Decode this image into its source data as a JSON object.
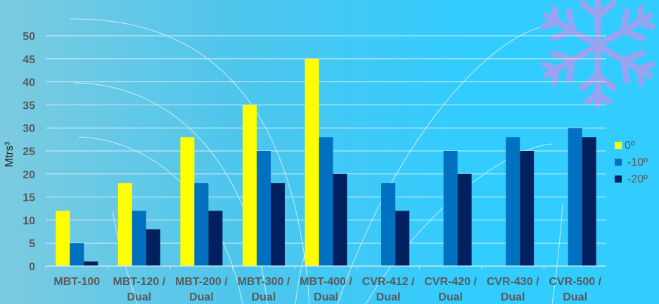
{
  "chart_data": {
    "type": "bar",
    "title": "",
    "xlabel": "",
    "ylabel": "Mtrs³",
    "ylim": [
      0,
      50
    ],
    "yticks": [
      0,
      5,
      10,
      15,
      20,
      25,
      30,
      35,
      40,
      45,
      50
    ],
    "grid": true,
    "legend_position": "right",
    "categories": [
      [
        "MBT-100"
      ],
      [
        "MBT-120 /",
        "Dual"
      ],
      [
        "MBT-200 /",
        "Dual"
      ],
      [
        "MBT-300 /",
        "Dual"
      ],
      [
        "MBT-400 /",
        "Dual"
      ],
      [
        "CVR-412 /",
        "Dual"
      ],
      [
        "CVR-420 /",
        "Dual"
      ],
      [
        "CVR-430 /",
        "Dual"
      ],
      [
        "CVR-500 /",
        "Dual"
      ]
    ],
    "series": [
      {
        "name": "0º",
        "color": "#ffff00",
        "values": [
          12,
          18,
          28,
          35,
          45,
          null,
          null,
          null,
          null
        ]
      },
      {
        "name": "-10º",
        "color": "#0070c0",
        "values": [
          5,
          12,
          18,
          25,
          28,
          18,
          25,
          28,
          30
        ]
      },
      {
        "name": "-20º",
        "color": "#002060",
        "values": [
          1,
          8,
          12,
          18,
          20,
          12,
          20,
          25,
          28
        ]
      }
    ]
  }
}
